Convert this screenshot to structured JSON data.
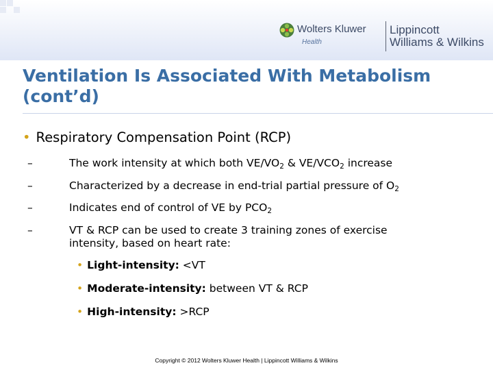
{
  "header": {
    "logo_left": "Wolters Kluwer",
    "logo_sub": "Health",
    "logo_right_line1": "Lippincott",
    "logo_right_line2": "Williams & Wilkins"
  },
  "slide": {
    "title_line1": "Ventilation Is Associated With Metabolism",
    "title_line2": "(cont’d)",
    "bullet_main": "Respiratory Compensation Point (RCP)",
    "subpoints": {
      "p1_a": "The work intensity at which both VE/VO",
      "p1_sub1": "2",
      "p1_b": " & VE/VCO",
      "p1_sub2": "2",
      "p1_c": " increase",
      "p2_a": "Characterized by a decrease in end-trial partial pressure of O",
      "p2_sub": "2",
      "p3_a": "Indicates end of control of VE by PCO",
      "p3_sub": "2",
      "p4_line1": "VT & RCP can be used to create 3 training zones of exercise",
      "p4_line2": "intensity, based on heart rate:"
    },
    "zones": [
      {
        "label": "Light-intensity:",
        "value": " <VT"
      },
      {
        "label": "Moderate-intensity:",
        "value": " between VT & RCP"
      },
      {
        "label": "High-intensity:",
        "value": " >RCP"
      }
    ],
    "dash_symbol": "–",
    "bullet_symbol": "•"
  },
  "footer": {
    "copyright": "Copyright © 2012 Wolters Kluwer Health | Lippincott Williams & Wilkins"
  },
  "colors": {
    "title": "#3a6ea5",
    "bullet": "#d4a31a",
    "logo_text": "#3c4a66"
  }
}
